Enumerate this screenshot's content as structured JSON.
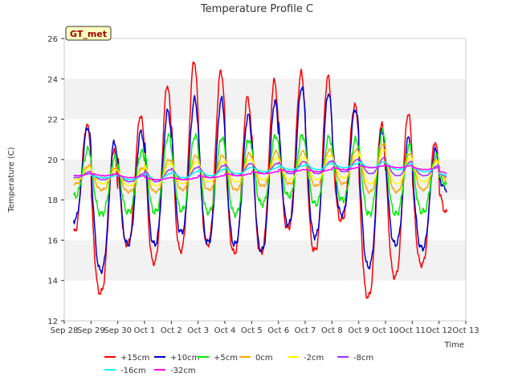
{
  "chart_data": {
    "type": "line",
    "title": "Temperature Profile C",
    "xlabel": "Time",
    "ylabel": "Temperature (C)",
    "site_badge": "GT_met",
    "ylim": [
      12,
      26
    ],
    "yticks": [
      12,
      14,
      16,
      18,
      20,
      22,
      24,
      26
    ],
    "xlim": [
      0,
      15
    ],
    "xtick_labels": [
      "Sep 28",
      "Sep 29",
      "Sep 30",
      "Oct 1",
      "Oct 2",
      "Oct 3",
      "Oct 4",
      "Oct 5",
      "Oct 6",
      "Oct 7",
      "Oct 8",
      "Oct 9",
      "Oct 10",
      "Oct 11",
      "Oct 12",
      "Oct 13"
    ],
    "x_unit": "days since Sep 28",
    "grid": "horizontal bands",
    "legend_position": "bottom",
    "series": [
      {
        "name": "+15cm",
        "color": "#ff0000",
        "daily_min": [
          16.4,
          13.4,
          15.8,
          14.9,
          15.5,
          15.8,
          15.4,
          15.4,
          16.6,
          15.5,
          17.0,
          13.2,
          14.2,
          14.8,
          17.3
        ],
        "daily_max": [
          21.7,
          20.5,
          22.2,
          23.7,
          24.9,
          24.4,
          23.1,
          23.9,
          24.3,
          24.1,
          22.7,
          21.8,
          22.3,
          20.9,
          19.0
        ]
      },
      {
        "name": "+10cm",
        "color": "#0000cc",
        "daily_min": [
          17.0,
          14.5,
          15.8,
          15.8,
          16.4,
          15.9,
          15.8,
          15.5,
          16.8,
          16.2,
          17.3,
          14.7,
          15.8,
          15.6,
          18.5
        ],
        "daily_max": [
          21.6,
          20.9,
          21.4,
          22.4,
          23.0,
          23.0,
          22.2,
          22.9,
          23.6,
          23.3,
          22.5,
          21.5,
          21.1,
          20.5,
          19.2
        ]
      },
      {
        "name": "+5cm",
        "color": "#00ee00",
        "daily_min": [
          18.2,
          17.3,
          17.4,
          17.4,
          17.5,
          17.4,
          17.3,
          17.8,
          18.2,
          17.8,
          18.0,
          17.3,
          17.3,
          17.4,
          18.7
        ],
        "daily_max": [
          20.5,
          20.1,
          20.4,
          21.2,
          21.2,
          21.1,
          21.0,
          21.2,
          21.2,
          21.1,
          21.0,
          21.4,
          20.7,
          20.2,
          19.3
        ]
      },
      {
        "name": "0cm",
        "color": "#ffa500",
        "daily_min": [
          18.8,
          18.5,
          18.4,
          18.4,
          18.5,
          18.5,
          18.5,
          18.7,
          18.8,
          18.7,
          18.8,
          18.4,
          18.4,
          18.5,
          18.9
        ],
        "daily_max": [
          19.7,
          19.6,
          19.6,
          20.0,
          20.2,
          20.2,
          20.3,
          20.4,
          20.4,
          20.5,
          20.5,
          20.8,
          20.3,
          20.0,
          19.5
        ]
      },
      {
        "name": "-2cm",
        "color": "#ffff00",
        "daily_min": [
          19.0,
          18.8,
          18.7,
          18.7,
          18.8,
          18.9,
          18.9,
          19.0,
          19.0,
          19.0,
          19.1,
          18.8,
          18.8,
          18.9,
          19.0
        ],
        "daily_max": [
          19.6,
          19.5,
          19.5,
          19.8,
          19.9,
          19.9,
          20.0,
          20.1,
          20.1,
          20.2,
          20.2,
          20.5,
          20.1,
          19.9,
          19.4
        ]
      },
      {
        "name": "-8cm",
        "color": "#9933ff",
        "daily_min": [
          19.1,
          19.0,
          18.9,
          18.9,
          19.0,
          19.1,
          19.2,
          19.3,
          19.3,
          19.3,
          19.4,
          19.3,
          19.2,
          19.2,
          19.1
        ],
        "daily_max": [
          19.4,
          19.3,
          19.3,
          19.5,
          19.6,
          19.7,
          19.8,
          19.8,
          19.9,
          19.9,
          20.0,
          20.1,
          19.9,
          19.7,
          19.3
        ]
      },
      {
        "name": "-16cm",
        "color": "#00ffff",
        "daily_min": [
          19.2,
          19.1,
          19.0,
          19.0,
          19.1,
          19.2,
          19.3,
          19.4,
          19.5,
          19.5,
          19.6,
          19.6,
          19.5,
          19.4,
          19.2
        ],
        "daily_max": [
          19.3,
          19.2,
          19.2,
          19.3,
          19.4,
          19.5,
          19.6,
          19.6,
          19.7,
          19.8,
          19.8,
          19.9,
          19.8,
          19.6,
          19.3
        ]
      },
      {
        "name": "-32cm",
        "color": "#ff00ff",
        "daily_min": [
          19.2,
          19.2,
          19.1,
          19.0,
          19.0,
          19.1,
          19.2,
          19.3,
          19.4,
          19.4,
          19.5,
          19.6,
          19.6,
          19.5,
          19.3
        ],
        "daily_max": [
          19.3,
          19.3,
          19.2,
          19.1,
          19.1,
          19.2,
          19.3,
          19.4,
          19.5,
          19.5,
          19.6,
          19.7,
          19.7,
          19.6,
          19.4
        ]
      }
    ]
  }
}
